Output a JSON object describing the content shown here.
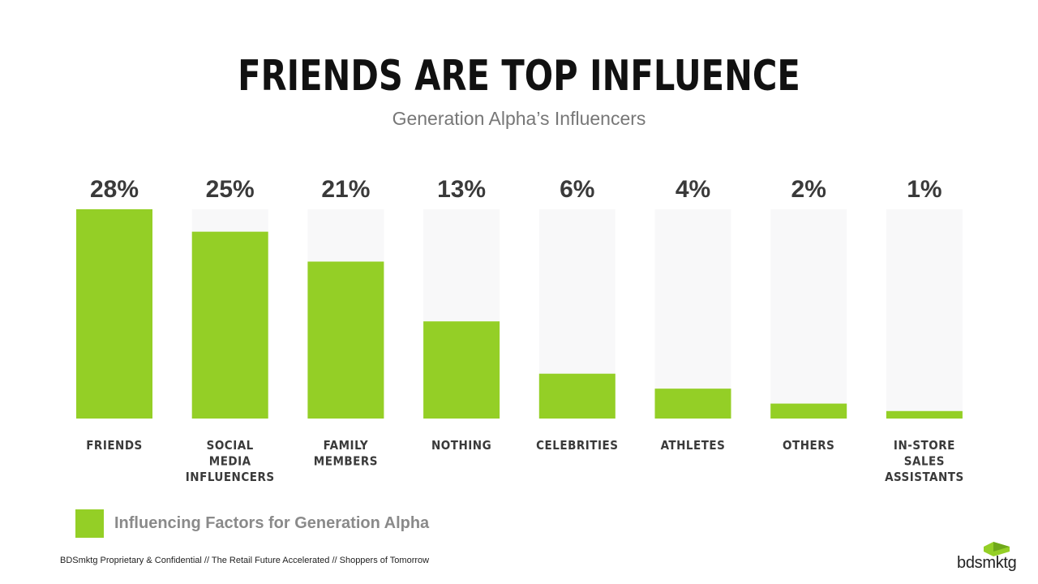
{
  "title": "FRIENDS ARE TOP INFLUENCE",
  "subtitle": "Generation Alpha’s Influencers",
  "colors": {
    "bar": "#94cf26",
    "track": "#f8f8f9",
    "text": "#3a3a3a"
  },
  "chart_data": {
    "type": "bar",
    "categories": [
      [
        "FRIENDS"
      ],
      [
        "SOCIAL",
        "MEDIA",
        "INFLUENCERS"
      ],
      [
        "FAMILY",
        "MEMBERS"
      ],
      [
        "NOTHING"
      ],
      [
        "CELEBRITIES"
      ],
      [
        "ATHLETES"
      ],
      [
        "OTHERS"
      ],
      [
        "IN-STORE",
        "SALES",
        "ASSISTANTS"
      ]
    ],
    "values": [
      28,
      25,
      21,
      13,
      6,
      4,
      2,
      1
    ],
    "value_labels": [
      "28%",
      "25%",
      "21%",
      "13%",
      "6%",
      "4%",
      "2%",
      "1%"
    ],
    "series": [
      {
        "name": "Influencing Factors for Generation Alpha"
      }
    ],
    "ylim": [
      0,
      28
    ],
    "unit": "%",
    "grid": false,
    "legend_position": "bottom-left"
  },
  "legend": {
    "label": "Influencing Factors for Generation Alpha"
  },
  "footer": "BDSmktg Proprietary & Confidential // The Retail Future Accelerated // Shoppers of Tomorrow",
  "logo": {
    "text": "bdsmktg",
    "icon": "house-roof-icon"
  }
}
